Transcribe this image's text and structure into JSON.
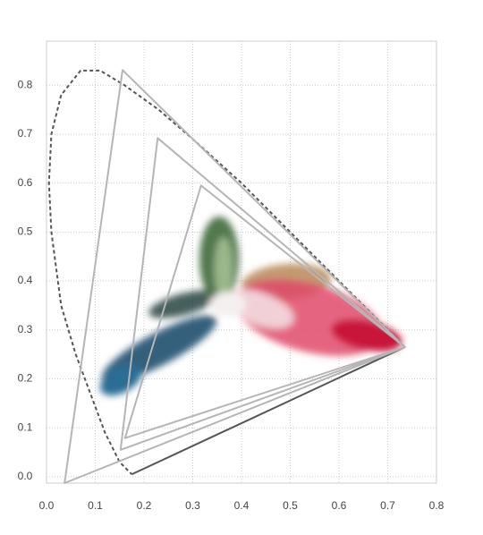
{
  "chart_data": {
    "type": "line",
    "xlim": [
      0,
      0.8
    ],
    "ylim": [
      -0.013,
      0.89
    ],
    "xticks": [
      {
        "value": 0,
        "label": "0.0"
      },
      0.1,
      0.2,
      0.3,
      0.4,
      0.5,
      0.6,
      0.7,
      0.8
    ],
    "yticks": [
      {
        "value": 0,
        "label": "0.0"
      },
      0.1,
      0.2,
      0.3,
      0.4,
      0.5,
      0.6,
      0.7,
      0.8
    ],
    "grid": true,
    "series": [
      {
        "color": "#555555",
        "dashed": true,
        "closed": false,
        "x": [
          0.735,
          0.7,
          0.6,
          0.5,
          0.4,
          0.3,
          0.23,
          0.16,
          0.11,
          0.07,
          0.03,
          0.01,
          0.005,
          0.01,
          0.03,
          0.06,
          0.09,
          0.12,
          0.15,
          0.17,
          0.175
        ],
        "values": [
          0.265,
          0.3,
          0.4,
          0.5,
          0.6,
          0.69,
          0.75,
          0.8,
          0.83,
          0.83,
          0.78,
          0.7,
          0.6,
          0.5,
          0.35,
          0.25,
          0.17,
          0.09,
          0.03,
          0.01,
          0.005
        ]
      },
      {
        "color": "#555555",
        "dashed": false,
        "closed": false,
        "x": [
          0.175,
          0.735
        ],
        "values": [
          0.005,
          0.265
        ]
      },
      {
        "color": "#b5b5b5",
        "dashed": false,
        "closed": true,
        "x": [
          0.156,
          0.735,
          0.037
        ],
        "values": [
          0.831,
          0.265,
          -0.013
        ]
      },
      {
        "color": "#b5b5b5",
        "dashed": false,
        "closed": true,
        "x": [
          0.228,
          0.735,
          0.152
        ],
        "values": [
          0.692,
          0.265,
          0.055
        ]
      },
      {
        "color": "#b5b5b5",
        "dashed": false,
        "closed": true,
        "x": [
          0.317,
          0.735,
          0.161
        ],
        "values": [
          0.595,
          0.265,
          0.079
        ]
      }
    ]
  }
}
